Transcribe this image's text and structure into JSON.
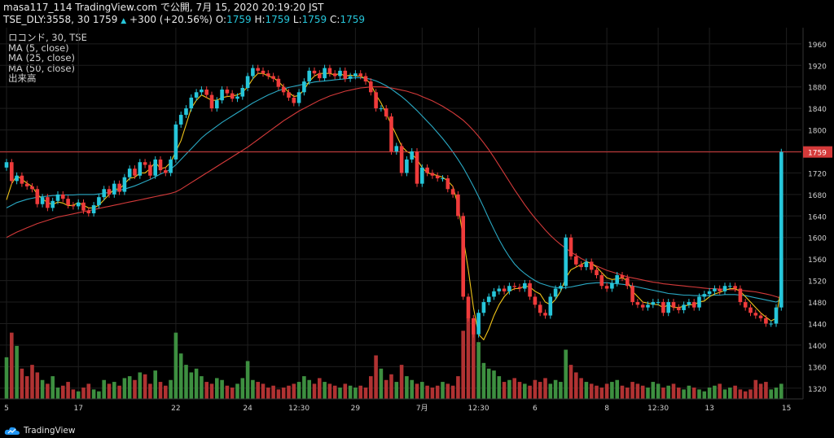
{
  "header": {
    "line1": "masa117_114 TradingView.com で公開, 7月 15, 2020 20:19:20 JST",
    "line2_prefix": "TSE_DLY:3558, 30 1759",
    "change_arrow": "▲",
    "change": "+300 (+20.56%)",
    "o_label": "O:",
    "o_val": "1759",
    "h_label": "H:",
    "h_val": "1759",
    "l_label": "L:",
    "l_val": "1759",
    "c_label": "C:",
    "c_val": "1759"
  },
  "indicators": [
    "ロコンド, 30, TSE",
    "MA (5, close)",
    "MA (25, close)",
    "MA (50, close)",
    "出来高"
  ],
  "branding": {
    "logo_text": "TradingView"
  },
  "colors": {
    "up": "#4caf50",
    "down": "#ef3b3b",
    "wick_up": "#26c6da",
    "ma5": "#f0c419",
    "ma25": "#2aa9c4",
    "ma50": "#d43a3a",
    "price_line": "#d43a3a",
    "grid": "#1e1e1e",
    "axis_text": "#d0d0d0"
  },
  "chart_data": {
    "type": "candlestick",
    "symbol": "TSE_DLY:3558",
    "interval": "30",
    "ylim": [
      1300,
      1990
    ],
    "yticks": [
      1320,
      1360,
      1400,
      1440,
      1480,
      1520,
      1560,
      1600,
      1640,
      1680,
      1720,
      1760,
      1800,
      1840,
      1880,
      1920,
      1960
    ],
    "last_price": 1759,
    "xtick_labels": [
      {
        "i": 0,
        "label": "5"
      },
      {
        "i": 14,
        "label": "17"
      },
      {
        "i": 33,
        "label": "22"
      },
      {
        "i": 47,
        "label": "24"
      },
      {
        "i": 57,
        "label": "12:30"
      },
      {
        "i": 68,
        "label": "29"
      },
      {
        "i": 81,
        "label": "7月"
      },
      {
        "i": 92,
        "label": "12:30"
      },
      {
        "i": 103,
        "label": "6"
      },
      {
        "i": 117,
        "label": "8"
      },
      {
        "i": 127,
        "label": "12:30"
      },
      {
        "i": 137,
        "label": "13"
      },
      {
        "i": 152,
        "label": "15"
      }
    ],
    "close": [
      1740,
      1705,
      1715,
      1700,
      1695,
      1690,
      1662,
      1675,
      1655,
      1668,
      1680,
      1672,
      1660,
      1658,
      1665,
      1650,
      1645,
      1660,
      1675,
      1690,
      1680,
      1700,
      1685,
      1712,
      1728,
      1715,
      1740,
      1735,
      1715,
      1745,
      1725,
      1720,
      1745,
      1810,
      1828,
      1840,
      1860,
      1870,
      1875,
      1865,
      1840,
      1855,
      1875,
      1868,
      1858,
      1862,
      1878,
      1900,
      1915,
      1910,
      1905,
      1900,
      1895,
      1880,
      1870,
      1860,
      1850,
      1870,
      1890,
      1910,
      1905,
      1896,
      1915,
      1905,
      1900,
      1910,
      1895,
      1900,
      1905,
      1900,
      1890,
      1870,
      1840,
      1840,
      1825,
      1760,
      1770,
      1720,
      1745,
      1760,
      1700,
      1730,
      1720,
      1715,
      1710,
      1710,
      1690,
      1680,
      1640,
      1490,
      1450,
      1420,
      1460,
      1480,
      1490,
      1500,
      1505,
      1500,
      1510,
      1508,
      1505,
      1515,
      1490,
      1475,
      1460,
      1455,
      1490,
      1505,
      1510,
      1600,
      1565,
      1550,
      1545,
      1555,
      1540,
      1530,
      1510,
      1505,
      1515,
      1530,
      1525,
      1510,
      1480,
      1475,
      1470,
      1475,
      1480,
      1480,
      1460,
      1480,
      1470,
      1465,
      1475,
      1480,
      1470,
      1490,
      1495,
      1500,
      1505,
      1500,
      1510,
      1510,
      1505,
      1480,
      1470,
      1460,
      1455,
      1450,
      1440,
      1440,
      1470,
      1759
    ],
    "ma5": [
      1670,
      1700,
      1715,
      1708,
      1701,
      1695,
      1680,
      1672,
      1665,
      1661,
      1666,
      1664,
      1659,
      1660,
      1665,
      1660,
      1655,
      1655,
      1660,
      1670,
      1680,
      1690,
      1690,
      1700,
      1710,
      1712,
      1720,
      1720,
      1728,
      1740,
      1728,
      1730,
      1740,
      1760,
      1780,
      1810,
      1840,
      1855,
      1865,
      1860,
      1855,
      1855,
      1860,
      1862,
      1863,
      1865,
      1870,
      1880,
      1895,
      1905,
      1905,
      1900,
      1897,
      1890,
      1880,
      1870,
      1862,
      1864,
      1875,
      1890,
      1900,
      1905,
      1905,
      1905,
      1902,
      1905,
      1900,
      1902,
      1900,
      1900,
      1895,
      1885,
      1865,
      1850,
      1830,
      1810,
      1790,
      1770,
      1760,
      1755,
      1745,
      1730,
      1720,
      1718,
      1715,
      1712,
      1705,
      1695,
      1660,
      1600,
      1540,
      1470,
      1420,
      1410,
      1430,
      1455,
      1475,
      1490,
      1500,
      1505,
      1505,
      1510,
      1508,
      1500,
      1495,
      1480,
      1475,
      1485,
      1500,
      1525,
      1540,
      1545,
      1550,
      1555,
      1552,
      1545,
      1535,
      1525,
      1522,
      1523,
      1525,
      1520,
      1500,
      1490,
      1480,
      1478,
      1476,
      1475,
      1470,
      1475,
      1470,
      1470,
      1472,
      1475,
      1475,
      1480,
      1482,
      1490,
      1495,
      1498,
      1502,
      1505,
      1505,
      1500,
      1490,
      1480,
      1470,
      1460,
      1452,
      1445,
      1450,
      1510
    ],
    "ma25": [
      1655,
      1660,
      1665,
      1668,
      1671,
      1673,
      1675,
      1676,
      1677,
      1678,
      1678,
      1679,
      1679,
      1679,
      1680,
      1680,
      1680,
      1680,
      1681,
      1682,
      1684,
      1686,
      1688,
      1690,
      1693,
      1696,
      1700,
      1704,
      1708,
      1713,
      1718,
      1722,
      1727,
      1735,
      1745,
      1755,
      1765,
      1775,
      1785,
      1793,
      1800,
      1807,
      1814,
      1820,
      1826,
      1832,
      1838,
      1844,
      1850,
      1855,
      1860,
      1865,
      1869,
      1873,
      1876,
      1879,
      1881,
      1883,
      1885,
      1887,
      1889,
      1890,
      1891,
      1892,
      1893,
      1894,
      1895,
      1896,
      1897,
      1897,
      1896,
      1894,
      1891,
      1887,
      1882,
      1876,
      1869,
      1862,
      1854,
      1845,
      1836,
      1826,
      1816,
      1806,
      1795,
      1784,
      1772,
      1759,
      1745,
      1730,
      1713,
      1695,
      1676,
      1656,
      1635,
      1615,
      1596,
      1579,
      1564,
      1551,
      1541,
      1533,
      1526,
      1520,
      1515,
      1512,
      1509,
      1507,
      1506,
      1507,
      1508,
      1510,
      1512,
      1514,
      1515,
      1516,
      1516,
      1516,
      1515,
      1514,
      1513,
      1512,
      1510,
      1508,
      1506,
      1504,
      1502,
      1500,
      1498,
      1496,
      1495,
      1494,
      1493,
      1493,
      1492,
      1492,
      1492,
      1492,
      1493,
      1493,
      1494,
      1494,
      1494,
      1493,
      1492,
      1490,
      1488,
      1486,
      1484,
      1482,
      1480,
      1485
    ],
    "ma50": [
      1600,
      1605,
      1610,
      1614,
      1618,
      1622,
      1626,
      1629,
      1632,
      1635,
      1638,
      1640,
      1642,
      1644,
      1646,
      1648,
      1650,
      1652,
      1654,
      1656,
      1658,
      1660,
      1662,
      1664,
      1666,
      1668,
      1670,
      1672,
      1674,
      1676,
      1678,
      1680,
      1682,
      1685,
      1690,
      1696,
      1702,
      1708,
      1714,
      1720,
      1726,
      1732,
      1738,
      1744,
      1750,
      1756,
      1762,
      1768,
      1775,
      1782,
      1789,
      1796,
      1803,
      1810,
      1817,
      1823,
      1829,
      1835,
      1840,
      1845,
      1850,
      1855,
      1859,
      1863,
      1866,
      1869,
      1872,
      1874,
      1876,
      1878,
      1879,
      1880,
      1880,
      1880,
      1879,
      1878,
      1876,
      1874,
      1872,
      1869,
      1866,
      1862,
      1858,
      1854,
      1849,
      1844,
      1838,
      1832,
      1825,
      1818,
      1809,
      1799,
      1788,
      1776,
      1763,
      1749,
      1734,
      1719,
      1704,
      1689,
      1675,
      1661,
      1648,
      1636,
      1625,
      1614,
      1604,
      1595,
      1587,
      1580,
      1573,
      1567,
      1561,
      1556,
      1551,
      1547,
      1543,
      1539,
      1536,
      1533,
      1530,
      1527,
      1525,
      1523,
      1521,
      1519,
      1517,
      1516,
      1514,
      1513,
      1512,
      1511,
      1510,
      1509,
      1508,
      1507,
      1506,
      1505,
      1505,
      1504,
      1504,
      1503,
      1503,
      1502,
      1501,
      1500,
      1499,
      1497,
      1495,
      1493,
      1490,
      1487
    ],
    "volume": [
      22,
      35,
      28,
      16,
      12,
      18,
      14,
      10,
      8,
      12,
      6,
      7,
      9,
      5,
      4,
      6,
      8,
      5,
      4,
      10,
      8,
      9,
      7,
      11,
      12,
      10,
      14,
      13,
      8,
      15,
      9,
      7,
      10,
      35,
      24,
      18,
      14,
      16,
      12,
      9,
      8,
      11,
      10,
      7,
      6,
      8,
      11,
      20,
      10,
      9,
      8,
      6,
      7,
      5,
      6,
      7,
      8,
      9,
      12,
      10,
      8,
      11,
      9,
      8,
      7,
      6,
      8,
      7,
      6,
      7,
      6,
      12,
      23,
      16,
      10,
      13,
      9,
      18,
      12,
      10,
      8,
      9,
      7,
      6,
      7,
      9,
      8,
      7,
      12,
      36,
      43,
      38,
      30,
      19,
      16,
      15,
      12,
      9,
      10,
      11,
      9,
      8,
      7,
      10,
      9,
      11,
      8,
      10,
      9,
      26,
      18,
      14,
      11,
      9,
      8,
      7,
      6,
      8,
      9,
      10,
      7,
      6,
      9,
      8,
      7,
      6,
      9,
      8,
      6,
      7,
      8,
      6,
      5,
      7,
      6,
      5,
      4,
      6,
      7,
      8,
      5,
      6,
      7,
      5,
      4,
      5,
      10,
      8,
      9,
      5,
      6,
      8
    ]
  }
}
